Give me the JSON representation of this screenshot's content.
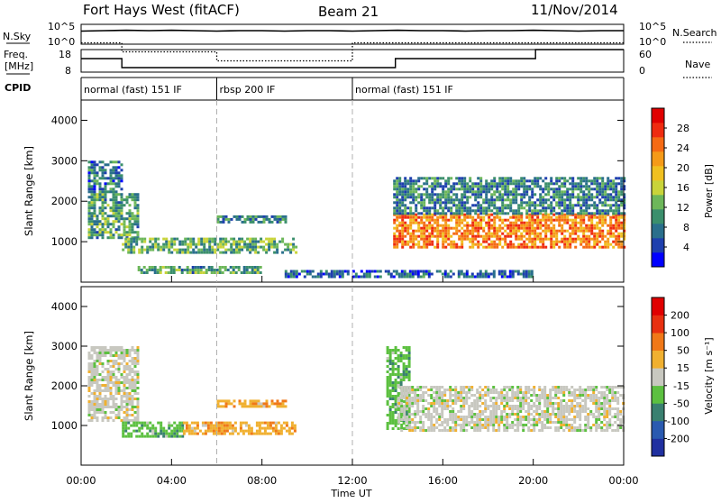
{
  "header": {
    "station": "Fort Hays West (fitACF)",
    "beam": "Beam 21",
    "date": "11/Nov/2014"
  },
  "summary_labels": {
    "nsky": "N.Sky",
    "nsky_ticks": [
      "10^5",
      "10^0"
    ],
    "nsearch": "N.Search",
    "nsearch_ticks": [
      "10^5",
      "10^0"
    ],
    "freq_title": "Freq.",
    "freq_unit": "[MHz]",
    "freq_ticks": [
      "18",
      "8"
    ],
    "nave": "Nave",
    "nave_ticks": [
      "60",
      "0"
    ],
    "cpid": "CPID"
  },
  "cpid_segments": [
    {
      "label": "normal (fast) 151 IF",
      "start": 0,
      "end": 6
    },
    {
      "label": "rbsp 200 IF",
      "start": 6,
      "end": 12
    },
    {
      "label": "normal (fast) 151 IF",
      "start": 12,
      "end": 24
    }
  ],
  "axes": {
    "ylabel": "Slant Range [km]",
    "yticks": [
      "4000",
      "3000",
      "2000",
      "1000"
    ],
    "xlabel": "Time UT",
    "xticks": [
      "00:00",
      "04:00",
      "08:00",
      "12:00",
      "16:00",
      "20:00",
      "00:00"
    ]
  },
  "colorbars": {
    "power": {
      "label": "Power [dB]",
      "ticks": [
        "28",
        "24",
        "20",
        "16",
        "12",
        "8",
        "4"
      ],
      "colors": [
        "#0000ff",
        "#1e3fae",
        "#2a6f8c",
        "#3b8f6c",
        "#6db75a",
        "#c9d43a",
        "#f0c020",
        "#f59a18",
        "#f56a14",
        "#ef2b10",
        "#e00000"
      ]
    },
    "velocity": {
      "label": "Velocity [m s⁻¹]",
      "ticks": [
        "200",
        "100",
        "50",
        "15",
        "-15",
        "-50",
        "-100",
        "-200"
      ],
      "colors": [
        "#2030a0",
        "#2a5ab0",
        "#3a8070",
        "#5cc040",
        "#c8c8c0",
        "#f0b030",
        "#f07818",
        "#e83010",
        "#e00000"
      ]
    }
  },
  "chart_data": [
    {
      "type": "line",
      "title": "N.Sky / N.Search",
      "series": [
        {
          "name": "N.Sky",
          "style": "solid",
          "x": [
            0,
            1,
            2,
            3,
            4,
            5,
            6,
            7,
            8,
            9,
            10,
            11,
            12,
            13,
            14,
            15,
            16,
            17,
            18,
            19,
            20,
            21,
            22,
            23,
            24
          ],
          "y": [
            3.3,
            3.4,
            3.5,
            3.4,
            3.5,
            3.4,
            3.3,
            3.4,
            3.4,
            3.3,
            3.4,
            3.4,
            3.3,
            3.4,
            3.5,
            3.4,
            3.4,
            3.3,
            3.4,
            3.4,
            3.5,
            3.4,
            3.3,
            3.4,
            3.4
          ]
        }
      ],
      "xlim": [
        0,
        24
      ],
      "ylim": [
        0,
        5
      ]
    },
    {
      "type": "line",
      "title": "Freq. / Nave",
      "series": [
        {
          "name": "Freq.",
          "style": "solid",
          "x": [
            0,
            1.8,
            1.8,
            13.9,
            13.9,
            20.1,
            20.1,
            24
          ],
          "y": [
            14,
            14,
            10,
            10,
            14,
            14,
            18,
            18
          ]
        },
        {
          "name": "Nave",
          "style": "dotted",
          "x": [
            0,
            1.8,
            1.8,
            6,
            6,
            12,
            12,
            24
          ],
          "y": [
            21,
            21,
            17,
            17,
            13,
            13,
            21,
            21
          ]
        }
      ],
      "xlim": [
        0,
        24
      ],
      "ylim_freq": [
        8,
        18
      ],
      "ylim_nave": [
        0,
        60
      ]
    },
    {
      "type": "heatmap",
      "title": "Power [dB]",
      "xlabel": "Time UT",
      "ylabel": "Slant Range [km]",
      "xlim": [
        0,
        24
      ],
      "ylim": [
        0,
        4500
      ],
      "zlim": [
        0,
        30
      ],
      "bands": [
        {
          "x": [
            0.3,
            2.5
          ],
          "y": [
            1100,
            2200
          ],
          "z": 10
        },
        {
          "x": [
            0.3,
            1.8
          ],
          "y": [
            2200,
            3000
          ],
          "z": 7
        },
        {
          "x": [
            1.8,
            9.5
          ],
          "y": [
            700,
            1100
          ],
          "z": 11
        },
        {
          "x": [
            6.0,
            9.0
          ],
          "y": [
            1450,
            1650
          ],
          "z": 8
        },
        {
          "x": [
            2.5,
            8.0
          ],
          "y": [
            200,
            400
          ],
          "z": 10
        },
        {
          "x": [
            9.0,
            20.0
          ],
          "y": [
            150,
            300
          ],
          "z": 6
        },
        {
          "x": [
            13.8,
            24
          ],
          "y": [
            850,
            1700
          ],
          "z": 22
        },
        {
          "x": [
            13.8,
            24
          ],
          "y": [
            1700,
            2600
          ],
          "z": 8
        }
      ]
    },
    {
      "type": "heatmap",
      "title": "Velocity [m s⁻¹]",
      "xlabel": "Time UT",
      "ylabel": "Slant Range [km]",
      "xlim": [
        0,
        24
      ],
      "ylim": [
        0,
        4500
      ],
      "zlim": [
        -200,
        200
      ],
      "bands": [
        {
          "x": [
            0.3,
            2.5
          ],
          "y": [
            1100,
            3000
          ],
          "z": 0
        },
        {
          "x": [
            1.8,
            4.5
          ],
          "y": [
            700,
            1100
          ],
          "z": 50
        },
        {
          "x": [
            4.5,
            9.5
          ],
          "y": [
            800,
            1100
          ],
          "z": -50
        },
        {
          "x": [
            6.0,
            9.0
          ],
          "y": [
            1450,
            1650
          ],
          "z": -50
        },
        {
          "x": [
            13.5,
            14.5
          ],
          "y": [
            900,
            3000
          ],
          "z": 50
        },
        {
          "x": [
            14.0,
            24
          ],
          "y": [
            900,
            2000
          ],
          "z": 0
        }
      ]
    }
  ]
}
